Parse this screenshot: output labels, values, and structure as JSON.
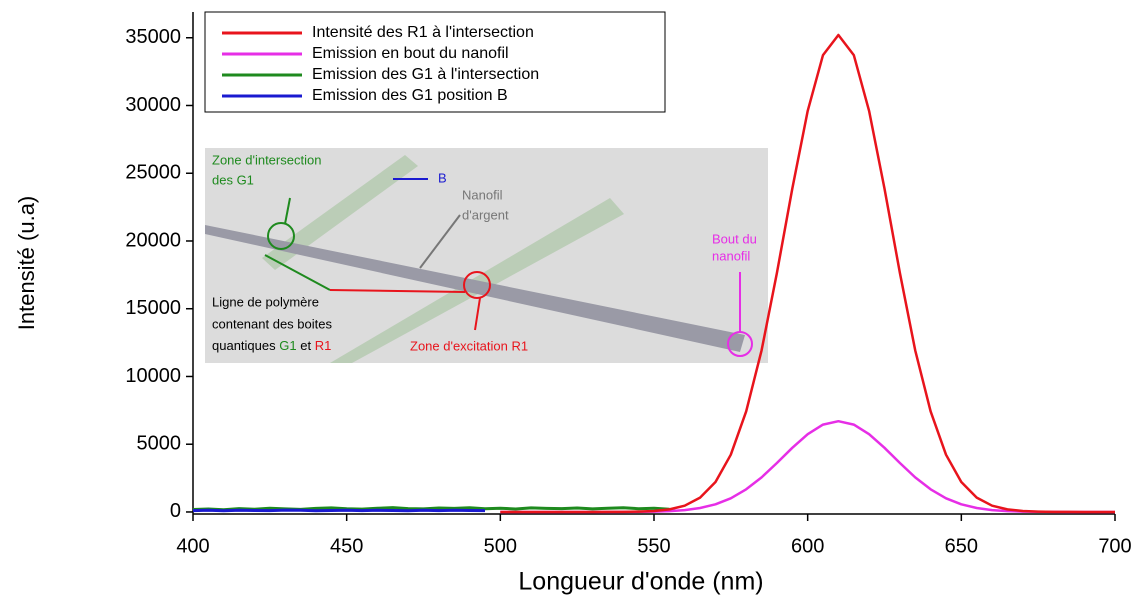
{
  "chart_data": {
    "type": "line",
    "x_label": "Longueur d'onde (nm)",
    "y_label": "Intensité (u.a)",
    "xlim": [
      400,
      700
    ],
    "xticks": [
      400,
      450,
      500,
      550,
      600,
      650,
      700
    ],
    "ylim": [
      -150,
      36900
    ],
    "yticks": [
      0,
      5000,
      10000,
      15000,
      20000,
      25000,
      30000,
      35000
    ],
    "legend": "upper left",
    "grid": false,
    "x": [
      400,
      405,
      410,
      415,
      420,
      425,
      430,
      435,
      440,
      445,
      450,
      455,
      460,
      465,
      470,
      475,
      480,
      485,
      490,
      495,
      500,
      505,
      510,
      515,
      520,
      525,
      530,
      535,
      540,
      545,
      550,
      555,
      560,
      565,
      570,
      575,
      580,
      585,
      590,
      595,
      600,
      605,
      610,
      615,
      620,
      625,
      630,
      635,
      640,
      645,
      650,
      655,
      660,
      665,
      670,
      675,
      680,
      685,
      690,
      695,
      700
    ],
    "series": [
      {
        "name": "Intensité des R1 à l'intersection",
        "color": "#e8141c",
        "values": [
          null,
          null,
          null,
          null,
          null,
          null,
          null,
          null,
          null,
          null,
          null,
          null,
          null,
          null,
          null,
          null,
          null,
          null,
          null,
          null,
          0,
          0,
          0,
          0,
          0,
          0,
          0,
          2,
          7,
          24,
          69,
          188,
          465,
          1063,
          2211,
          4224,
          7427,
          11933,
          17635,
          23866,
          29604,
          33722,
          35200,
          33722,
          29604,
          23866,
          17635,
          11933,
          7427,
          4224,
          2211,
          1063,
          465,
          188,
          69,
          24,
          7,
          2,
          0,
          0,
          0
        ]
      },
      {
        "name": "Emission en bout du nanofil",
        "color": "#e62ee6",
        "values": [
          null,
          null,
          null,
          null,
          null,
          null,
          null,
          null,
          null,
          null,
          null,
          null,
          null,
          null,
          null,
          null,
          null,
          null,
          null,
          null,
          0,
          0,
          0,
          0,
          0,
          0,
          0,
          1,
          3,
          10,
          26,
          63,
          141,
          294,
          567,
          1012,
          1670,
          2553,
          3613,
          4734,
          5742,
          6446,
          6700,
          6446,
          5742,
          4734,
          3613,
          2553,
          1670,
          1012,
          567,
          294,
          141,
          63,
          26,
          10,
          3,
          1,
          0,
          0,
          0
        ]
      },
      {
        "name": "Emission des G1 à l'intersection",
        "color": "#1e8a1e",
        "values": [
          180,
          220,
          160,
          250,
          200,
          280,
          230,
          190,
          260,
          300,
          240,
          210,
          270,
          320,
          250,
          230,
          290,
          260,
          310,
          240,
          280,
          220,
          300,
          260,
          250,
          290,
          230,
          270,
          310,
          240,
          280,
          200,
          null,
          null,
          null,
          null,
          null,
          null,
          null,
          null,
          null,
          null,
          null,
          null,
          null,
          null,
          null,
          null,
          null,
          null,
          null,
          null,
          null,
          null,
          null,
          null,
          null,
          null,
          null,
          null,
          null
        ]
      },
      {
        "name": "Emission des G1 position B",
        "color": "#1a1ad0",
        "values": [
          100,
          120,
          90,
          130,
          110,
          100,
          140,
          120,
          90,
          110,
          130,
          100,
          120,
          110,
          90,
          130,
          100,
          120,
          110,
          100,
          null,
          null,
          null,
          null,
          null,
          null,
          null,
          null,
          null,
          null,
          null,
          null,
          null,
          null,
          null,
          null,
          null,
          null,
          null,
          null,
          null,
          null,
          null,
          null,
          null,
          null,
          null,
          null,
          null,
          null,
          null,
          null,
          null,
          null,
          null,
          null,
          null,
          null,
          null,
          null,
          null
        ]
      }
    ],
    "inset": {
      "zone_intersection": [
        "Zone d'intersection",
        "des G1"
      ],
      "b": "B",
      "nanofil": [
        "Nanofil",
        "d'argent"
      ],
      "bout": [
        "Bout du",
        "nanofil"
      ],
      "ligne": [
        "Ligne de polymère",
        "contenant des boites",
        "quantiques",
        "G1",
        "et",
        "R1"
      ],
      "zone_excitation": "Zone d'excitation R1"
    }
  }
}
